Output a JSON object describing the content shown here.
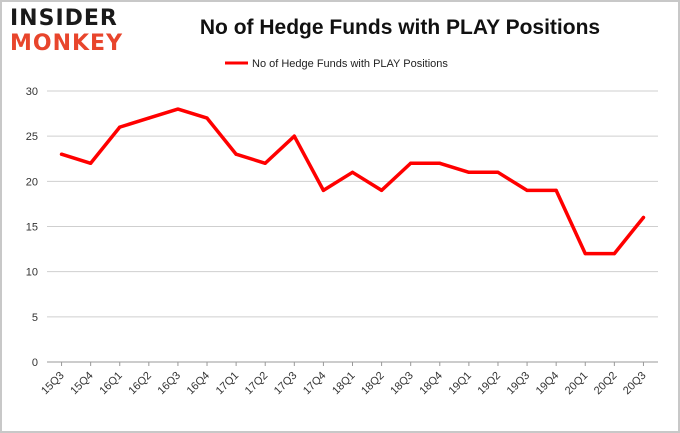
{
  "logo": {
    "line1": "INSIDER",
    "line2": "MONKEY"
  },
  "colors": {
    "series": "#ff0000",
    "grid": "#cfcfcf",
    "logo_accent": "#e8452c"
  },
  "chart_data": {
    "type": "line",
    "title": "No of Hedge Funds with PLAY Positions",
    "xlabel": "",
    "ylabel": "",
    "categories": [
      "15Q3",
      "15Q4",
      "16Q1",
      "16Q2",
      "16Q3",
      "16Q4",
      "17Q1",
      "17Q2",
      "17Q3",
      "17Q4",
      "18Q1",
      "18Q2",
      "18Q3",
      "18Q4",
      "19Q1",
      "19Q2",
      "19Q3",
      "19Q4",
      "20Q1",
      "20Q2",
      "20Q3"
    ],
    "series": [
      {
        "name": "No of Hedge Funds with PLAY Positions",
        "values": [
          23,
          22,
          26,
          27,
          28,
          27,
          23,
          22,
          25,
          19,
          21,
          19,
          22,
          22,
          21,
          21,
          19,
          19,
          12,
          12,
          16
        ]
      }
    ],
    "ylim": [
      0,
      30
    ],
    "yticks": [
      0,
      5,
      10,
      15,
      20,
      25,
      30
    ],
    "grid": true,
    "legend": "top-center"
  }
}
